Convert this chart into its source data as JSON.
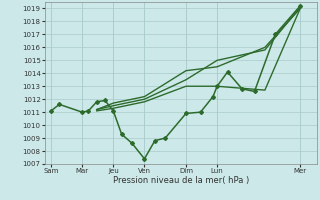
{
  "xlabel": "Pression niveau de la mer( hPa )",
  "background_color": "#cce8e8",
  "grid_color": "#aacccc",
  "line_color": "#2d6b2d",
  "ylim": [
    1007,
    1019.5
  ],
  "yticks": [
    1007,
    1008,
    1009,
    1010,
    1011,
    1012,
    1013,
    1014,
    1015,
    1016,
    1017,
    1018,
    1019
  ],
  "xtick_labels": [
    "Sam",
    "Mar",
    "Jeu",
    "Ven",
    "Dim",
    "Lun",
    "Mer"
  ],
  "xtick_positions": [
    0,
    1.5,
    3.0,
    4.5,
    6.5,
    8.0,
    12.0
  ],
  "xlim": [
    -0.3,
    12.8
  ],
  "series": [
    {
      "x": [
        0.0,
        0.4,
        1.5,
        1.8,
        2.2,
        2.6,
        3.0,
        3.4,
        3.9,
        4.5,
        5.0,
        5.5,
        6.5,
        7.2,
        7.8,
        8.0,
        8.5,
        9.2,
        9.8,
        10.8,
        12.0
      ],
      "y": [
        1011.1,
        1011.6,
        1011.0,
        1011.1,
        1011.8,
        1011.9,
        1011.1,
        1009.3,
        1008.6,
        1007.4,
        1008.8,
        1009.0,
        1010.9,
        1011.0,
        1012.2,
        1013.0,
        1014.1,
        1012.8,
        1012.6,
        1017.0,
        1019.2
      ],
      "marker": "D",
      "markersize": 2.0,
      "linewidth": 1.1
    },
    {
      "x": [
        2.2,
        3.0,
        4.5,
        6.5,
        8.0,
        10.3,
        12.0
      ],
      "y": [
        1011.2,
        1011.5,
        1012.0,
        1013.5,
        1015.0,
        1015.8,
        1019.1
      ],
      "marker": null,
      "markersize": 0,
      "linewidth": 1.0
    },
    {
      "x": [
        2.2,
        3.0,
        4.5,
        6.5,
        8.0,
        10.3,
        12.0
      ],
      "y": [
        1011.2,
        1011.7,
        1012.2,
        1014.2,
        1014.5,
        1016.0,
        1019.0
      ],
      "marker": null,
      "markersize": 0,
      "linewidth": 1.0
    },
    {
      "x": [
        2.2,
        3.0,
        4.5,
        6.5,
        8.0,
        10.3,
        12.0
      ],
      "y": [
        1011.1,
        1011.3,
        1011.8,
        1013.0,
        1013.0,
        1012.7,
        1019.0
      ],
      "marker": null,
      "markersize": 0,
      "linewidth": 1.0
    }
  ]
}
